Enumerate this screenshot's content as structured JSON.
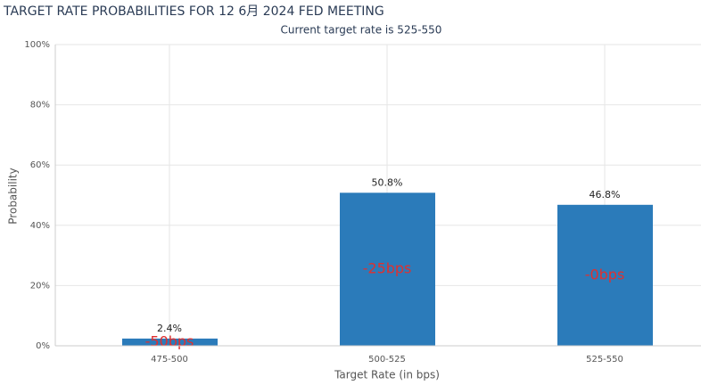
{
  "chart_data": {
    "type": "bar",
    "title": "TARGET RATE PROBABILITIES FOR 12 6月 2024 FED MEETING",
    "subtitle": "Current target rate is 525-550",
    "x_label": "Target Rate (in bps)",
    "y_label": "Probability",
    "categories": [
      "475-500",
      "500-525",
      "525-550"
    ],
    "values": [
      2.4,
      50.8,
      46.8
    ],
    "value_labels": [
      "2.4%",
      "50.8%",
      "46.8%"
    ],
    "annotations": [
      "-50bps",
      "-25bps",
      "-0bps"
    ],
    "color": "#2b7bba",
    "ylim": [
      0,
      100
    ],
    "yticks": [
      {
        "value": 0,
        "label": "0%"
      },
      {
        "value": 20,
        "label": "20%"
      },
      {
        "value": 40,
        "label": "40%"
      },
      {
        "value": 60,
        "label": "60%"
      },
      {
        "value": 80,
        "label": "80%"
      },
      {
        "value": 100,
        "label": "100%"
      }
    ],
    "grid": true
  }
}
